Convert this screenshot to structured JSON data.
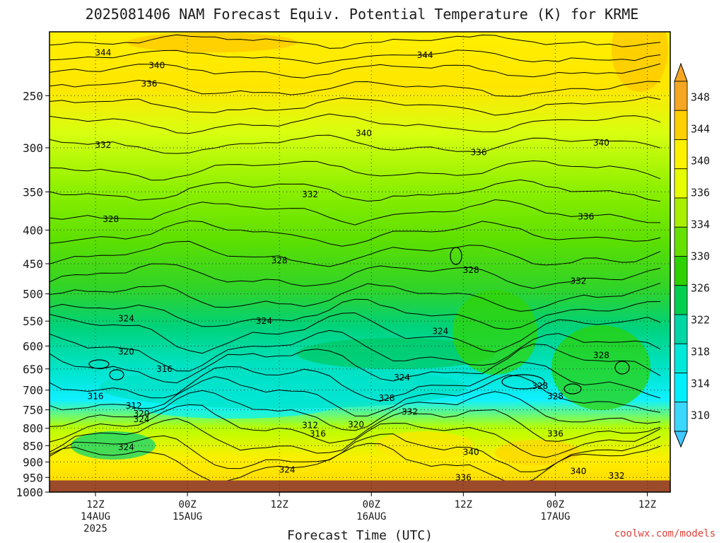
{
  "chart_data": {
    "type": "heatmap",
    "title": "2025081406 NAM Forecast Equiv. Potential Temperature (K) for KRME",
    "xlabel": "Forecast Time (UTC)",
    "credit": "coolwx.com/models",
    "y_axis": {
      "scale": "log",
      "inverted": true,
      "range": [
        200,
        1000
      ],
      "ticks": [
        250,
        300,
        350,
        400,
        450,
        500,
        550,
        600,
        650,
        700,
        750,
        800,
        850,
        900,
        950,
        1000
      ]
    },
    "x_axis": {
      "range": [
        "2025-08-14T06:00",
        "2025-08-17T15:00"
      ],
      "ticks": [
        {
          "time": "2025-08-14T12:00",
          "line1": "12Z",
          "line2": "14AUG",
          "line3": "2025"
        },
        {
          "time": "2025-08-15T00:00",
          "line1": "00Z",
          "line2": "15AUG",
          "line3": ""
        },
        {
          "time": "2025-08-15T12:00",
          "line1": "12Z",
          "line2": "",
          "line3": ""
        },
        {
          "time": "2025-08-16T00:00",
          "line1": "00Z",
          "line2": "16AUG",
          "line3": ""
        },
        {
          "time": "2025-08-16T12:00",
          "line1": "12Z",
          "line2": "",
          "line3": ""
        },
        {
          "time": "2025-08-17T00:00",
          "line1": "00Z",
          "line2": "17AUG",
          "line3": ""
        },
        {
          "time": "2025-08-17T12:00",
          "line1": "12Z",
          "line2": "",
          "line3": ""
        }
      ]
    },
    "grid": "dotted",
    "colorbar": {
      "placement": "right",
      "labels": [
        348,
        344,
        340,
        336,
        334,
        330,
        326,
        322,
        318,
        314,
        310
      ],
      "colors": [
        "#f5a623",
        "#ffd000",
        "#fff200",
        "#e6ff00",
        "#a8f000",
        "#66e000",
        "#2ed200",
        "#00cf50",
        "#00d6a6",
        "#00e8da",
        "#00f0ff",
        "#3ad8ff"
      ],
      "extend": "both"
    },
    "contour_levels": [
      312,
      316,
      320,
      324,
      328,
      332,
      336,
      340,
      344
    ],
    "contour_labels": [
      {
        "time": "2025-08-14T13:00",
        "p": 215,
        "value": "344"
      },
      {
        "time": "2025-08-14T20:00",
        "p": 225,
        "value": "340"
      },
      {
        "time": "2025-08-16T07:00",
        "p": 217,
        "value": "344"
      },
      {
        "time": "2025-08-14T19:00",
        "p": 240,
        "value": "336"
      },
      {
        "time": "2025-08-15T23:00",
        "p": 285,
        "value": "340"
      },
      {
        "time": "2025-08-17T06:00",
        "p": 295,
        "value": "340"
      },
      {
        "time": "2025-08-14T13:00",
        "p": 297,
        "value": "332"
      },
      {
        "time": "2025-08-16T14:00",
        "p": 305,
        "value": "336"
      },
      {
        "time": "2025-08-15T16:00",
        "p": 353,
        "value": "332"
      },
      {
        "time": "2025-08-17T04:00",
        "p": 382,
        "value": "336"
      },
      {
        "time": "2025-08-14T14:00",
        "p": 385,
        "value": "328"
      },
      {
        "time": "2025-08-15T12:00",
        "p": 445,
        "value": "328"
      },
      {
        "time": "2025-08-16T13:00",
        "p": 460,
        "value": "328"
      },
      {
        "time": "2025-08-17T03:00",
        "p": 478,
        "value": "332"
      },
      {
        "time": "2025-08-14T16:00",
        "p": 545,
        "value": "324"
      },
      {
        "time": "2025-08-15T10:00",
        "p": 550,
        "value": "324"
      },
      {
        "time": "2025-08-16T09:00",
        "p": 570,
        "value": "324"
      },
      {
        "time": "2025-08-17T06:00",
        "p": 620,
        "value": "328"
      },
      {
        "time": "2025-08-14T16:00",
        "p": 612,
        "value": "320"
      },
      {
        "time": "2025-08-14T21:00",
        "p": 650,
        "value": "316"
      },
      {
        "time": "2025-08-16T04:00",
        "p": 670,
        "value": "324"
      },
      {
        "time": "2025-08-16T22:00",
        "p": 690,
        "value": "328"
      },
      {
        "time": "2025-08-17T00:00",
        "p": 715,
        "value": "328"
      },
      {
        "time": "2025-08-14T12:00",
        "p": 715,
        "value": "316"
      },
      {
        "time": "2025-08-14T17:00",
        "p": 740,
        "value": "312"
      },
      {
        "time": "2025-08-14T18:00",
        "p": 760,
        "value": "320"
      },
      {
        "time": "2025-08-14T18:00",
        "p": 775,
        "value": "324"
      },
      {
        "time": "2025-08-16T02:00",
        "p": 720,
        "value": "328"
      },
      {
        "time": "2025-08-16T05:00",
        "p": 755,
        "value": "332"
      },
      {
        "time": "2025-08-15T16:00",
        "p": 792,
        "value": "312"
      },
      {
        "time": "2025-08-15T17:00",
        "p": 815,
        "value": "316"
      },
      {
        "time": "2025-08-15T22:00",
        "p": 790,
        "value": "320"
      },
      {
        "time": "2025-08-17T00:00",
        "p": 815,
        "value": "336"
      },
      {
        "time": "2025-08-14T16:00",
        "p": 855,
        "value": "324"
      },
      {
        "time": "2025-08-16T13:00",
        "p": 870,
        "value": "340"
      },
      {
        "time": "2025-08-15T13:00",
        "p": 925,
        "value": "324"
      },
      {
        "time": "2025-08-17T03:00",
        "p": 930,
        "value": "340"
      },
      {
        "time": "2025-08-16T12:00",
        "p": 950,
        "value": "336"
      },
      {
        "time": "2025-08-17T08:00",
        "p": 945,
        "value": "332"
      }
    ],
    "ground_below_p": 960,
    "ground_color": "#9b4a2a"
  }
}
